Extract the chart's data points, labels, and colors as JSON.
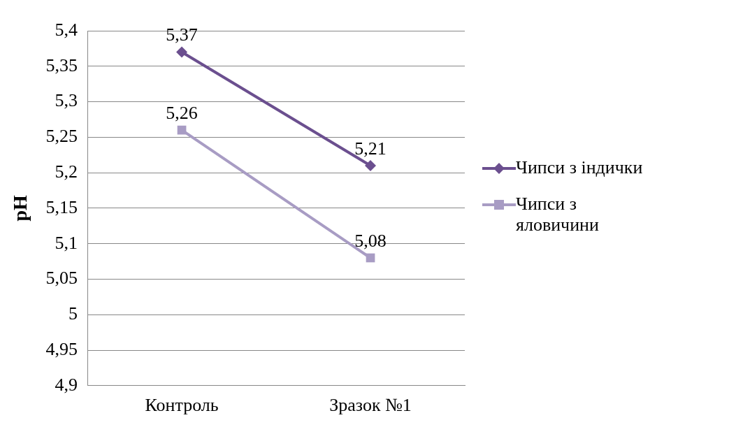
{
  "chart_data": {
    "type": "line",
    "ylabel": "pH",
    "categories": [
      "Контроль",
      "Зразок №1"
    ],
    "series": [
      {
        "name": "Чипси з індички",
        "color": "#6b4f8f",
        "values": [
          5.37,
          5.21
        ],
        "marker": "diamond",
        "value_labels": [
          "5,37",
          "5,21"
        ]
      },
      {
        "name": "Чипси з яловичини",
        "color": "#a89cc4",
        "values": [
          5.26,
          5.08
        ],
        "marker": "square",
        "value_labels": [
          "5,26",
          "5,08"
        ]
      }
    ],
    "ylim": [
      4.9,
      5.4
    ],
    "yticks": [
      {
        "value": 4.9,
        "label": "4,9"
      },
      {
        "value": 4.95,
        "label": "4,95"
      },
      {
        "value": 5,
        "label": "5"
      },
      {
        "value": 5.05,
        "label": "5,05"
      },
      {
        "value": 5.1,
        "label": "5,1"
      },
      {
        "value": 5.15,
        "label": "5,15"
      },
      {
        "value": 5.2,
        "label": "5,2"
      },
      {
        "value": 5.25,
        "label": "5,25"
      },
      {
        "value": 5.3,
        "label": "5,3"
      },
      {
        "value": 5.35,
        "label": "5,35"
      },
      {
        "value": 5.4,
        "label": "5,4"
      }
    ],
    "grid": "y",
    "legend": "right",
    "line_style": "solid"
  }
}
